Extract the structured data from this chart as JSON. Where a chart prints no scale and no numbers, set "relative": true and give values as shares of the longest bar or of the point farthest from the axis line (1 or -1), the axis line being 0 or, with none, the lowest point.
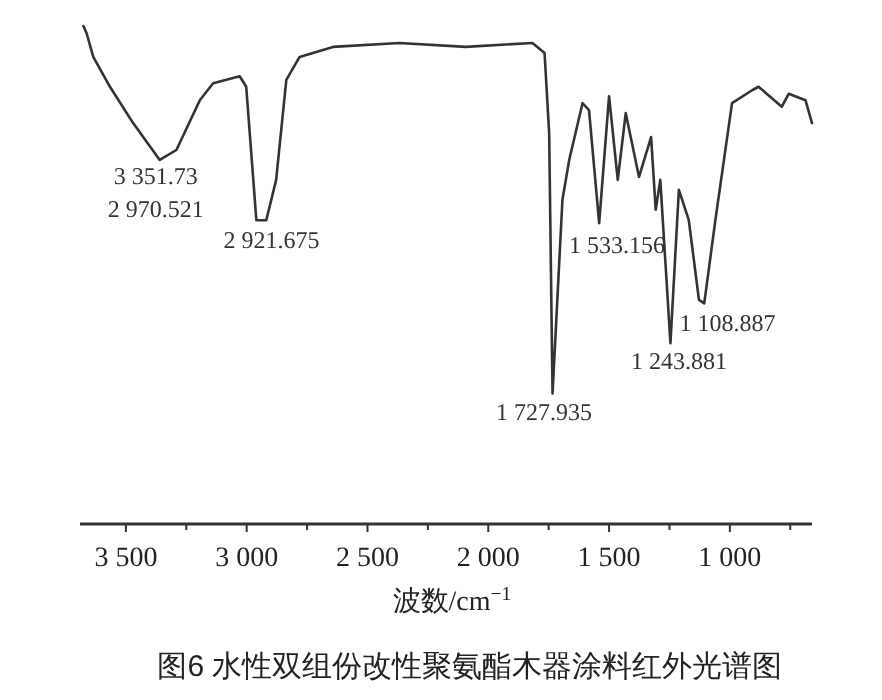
{
  "chart_data": {
    "type": "line",
    "relative": true,
    "title": "图6 水性双组份改性聚氨酯木器涂料红外光谱图",
    "xlabel": "波数/cm$^{−1}$",
    "xlim": [
      3690,
      660
    ],
    "xticks": [
      {
        "value": 3500,
        "label": "3 500"
      },
      {
        "value": 3250,
        "label": null
      },
      {
        "value": 3000,
        "label": "3 000"
      },
      {
        "value": 2750,
        "label": null
      },
      {
        "value": 2500,
        "label": "2 500"
      },
      {
        "value": 2250,
        "label": null
      },
      {
        "value": 2000,
        "label": "2 000"
      },
      {
        "value": 1750,
        "label": null
      },
      {
        "value": 1500,
        "label": "1 500"
      },
      {
        "value": 1250,
        "label": null
      },
      {
        "value": 1000,
        "label": "1 000"
      },
      {
        "value": 750,
        "label": null
      }
    ],
    "tick_labels": "x",
    "line_style": "solid",
    "series": [
      {
        "color": "#333333",
        "x": [
          3676,
          3663,
          3635,
          3566,
          3470,
          3360,
          3291,
          3194,
          3139,
          3029,
          3002,
          2960,
          2919,
          2878,
          2836,
          2781,
          2643,
          2368,
          2093,
          1817,
          1767,
          1748,
          1734,
          1693,
          1665,
          1610,
          1583,
          1541,
          1500,
          1464,
          1431,
          1376,
          1326,
          1307,
          1288,
          1246,
          1211,
          1170,
          1128,
          1106,
          1060,
          991,
          908,
          881,
          785,
          756,
          687,
          660
        ],
        "values": [
          1.0,
          0.986,
          0.938,
          0.878,
          0.805,
          0.731,
          0.751,
          0.851,
          0.885,
          0.899,
          0.878,
          0.61,
          0.61,
          0.691,
          0.892,
          0.938,
          0.958,
          0.966,
          0.958,
          0.966,
          0.946,
          0.785,
          0.262,
          0.651,
          0.731,
          0.845,
          0.831,
          0.604,
          0.859,
          0.691,
          0.825,
          0.697,
          0.777,
          0.631,
          0.691,
          0.363,
          0.671,
          0.61,
          0.45,
          0.443,
          0.61,
          0.845,
          0.871,
          0.878,
          0.838,
          0.864,
          0.851,
          0.805
        ]
      }
    ],
    "annotations": [
      {
        "text": "3 351.73",
        "x": 3351.73,
        "y": 0.731
      },
      {
        "text": "2 970.521",
        "x": 2970.521,
        "y": 0.64
      },
      {
        "text": "2 921.675",
        "x": 2921.675,
        "y": 0.61
      },
      {
        "text": "1 727.935",
        "x": 1727.935,
        "y": 0.262
      },
      {
        "text": "1 533.156",
        "x": 1533.156,
        "y": 0.604
      },
      {
        "text": "1 243.881",
        "x": 1243.881,
        "y": 0.363
      },
      {
        "text": "1 108.887",
        "x": 1108.887,
        "y": 0.443
      }
    ]
  }
}
